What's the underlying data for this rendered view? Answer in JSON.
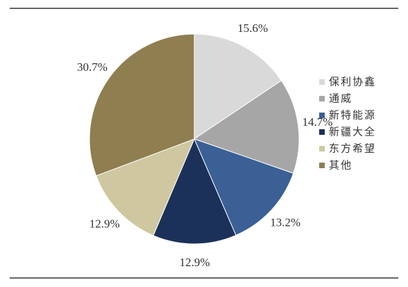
{
  "chart_data": {
    "type": "pie",
    "categories": [
      "保利协鑫",
      "通威",
      "新特能源",
      "新疆大全",
      "东方希望",
      "其他"
    ],
    "values": [
      15.6,
      14.7,
      13.2,
      12.9,
      12.9,
      30.7
    ],
    "value_labels": [
      "15.6%",
      "14.7%",
      "13.2%",
      "12.9%",
      "12.9%",
      "30.7%"
    ],
    "colors": [
      "#d9d9d9",
      "#a6a6a6",
      "#3a6096",
      "#1c3159",
      "#cfc7a0",
      "#8f7e4f"
    ],
    "legend": "right"
  }
}
